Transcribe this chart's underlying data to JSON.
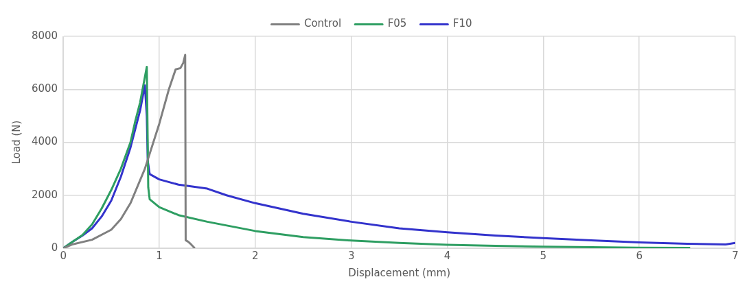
{
  "chart_data": {
    "type": "line",
    "xlabel": "Displacement (mm)",
    "ylabel": "Load (N)",
    "xlim": [
      0,
      7
    ],
    "ylim": [
      0,
      8000
    ],
    "xticks": [
      0,
      1,
      2,
      3,
      4,
      5,
      6,
      7
    ],
    "yticks": [
      0,
      2000,
      4000,
      6000,
      8000
    ],
    "grid": true,
    "legend": "top",
    "marker": "none",
    "line_style": "solid",
    "series": [
      {
        "name": "Control",
        "color": "#808080",
        "x": [
          0,
          0.1,
          0.3,
          0.5,
          0.6,
          0.7,
          0.85,
          1.0,
          1.1,
          1.17,
          1.22,
          1.25,
          1.27,
          1.275,
          1.3,
          1.33,
          1.37
        ],
        "values": [
          0,
          150,
          320,
          700,
          1100,
          1700,
          3000,
          4700,
          6000,
          6750,
          6800,
          7000,
          7300,
          300,
          250,
          150,
          0
        ]
      },
      {
        "name": "F05",
        "color": "#2e9e62",
        "x": [
          0,
          0.1,
          0.2,
          0.3,
          0.4,
          0.5,
          0.6,
          0.7,
          0.75,
          0.8,
          0.87,
          0.885,
          0.9,
          1.0,
          1.2,
          1.5,
          2,
          2.5,
          3,
          3.5,
          4,
          4.5,
          5,
          5.5,
          6,
          6.53
        ],
        "values": [
          0,
          250,
          500,
          900,
          1500,
          2200,
          3000,
          4000,
          4800,
          5500,
          6850,
          2300,
          1850,
          1550,
          1250,
          1000,
          650,
          420,
          290,
          200,
          130,
          90,
          60,
          40,
          20,
          10
        ]
      },
      {
        "name": "F10",
        "color": "#3333cc",
        "x": [
          0,
          0.1,
          0.2,
          0.3,
          0.4,
          0.5,
          0.6,
          0.7,
          0.75,
          0.8,
          0.85,
          0.87,
          0.88,
          0.9,
          1.0,
          1.2,
          1.5,
          1.7,
          2,
          2.5,
          3,
          3.5,
          4,
          4.5,
          5,
          5.5,
          6,
          6.5,
          6.9,
          7
        ],
        "values": [
          0,
          250,
          480,
          750,
          1200,
          1800,
          2700,
          3800,
          4500,
          5200,
          6150,
          5000,
          3300,
          2800,
          2600,
          2400,
          2250,
          2000,
          1700,
          1300,
          1000,
          750,
          600,
          480,
          380,
          300,
          220,
          170,
          140,
          200
        ]
      }
    ]
  }
}
